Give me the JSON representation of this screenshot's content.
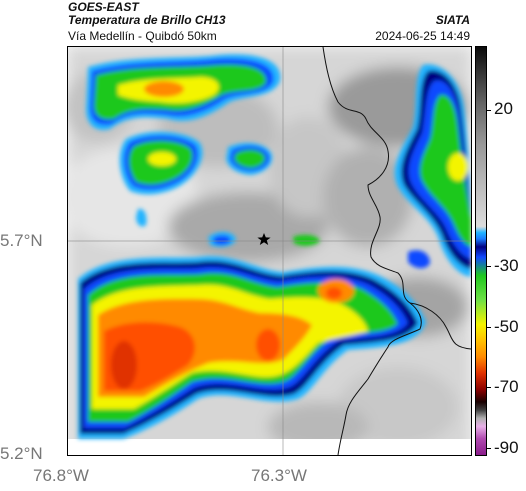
{
  "header": {
    "satellite": "GOES-EAST",
    "product": "Temperatura de Brillo CH13",
    "route": "Vía Medellín - Quibdó 50km",
    "agency": "SIATA",
    "datetime": "2024-06-25 14:49"
  },
  "map": {
    "lat_labels": [
      "5.7°N",
      "5.2°N"
    ],
    "lon_labels": [
      "76.8°W",
      "76.3°W"
    ],
    "marker_icon": "star-icon",
    "colors": {
      "cold_purple": "#b04ab0",
      "red": "#e03000",
      "orange": "#ff8a00",
      "yellow": "#f4f400",
      "green": "#1ec81e",
      "blue": "#1048ff",
      "navy": "#000080",
      "cyan": "#20b4ff"
    }
  },
  "colorbar": {
    "ticks": [
      "20",
      "-30",
      "-50",
      "-70",
      "-90"
    ]
  }
}
